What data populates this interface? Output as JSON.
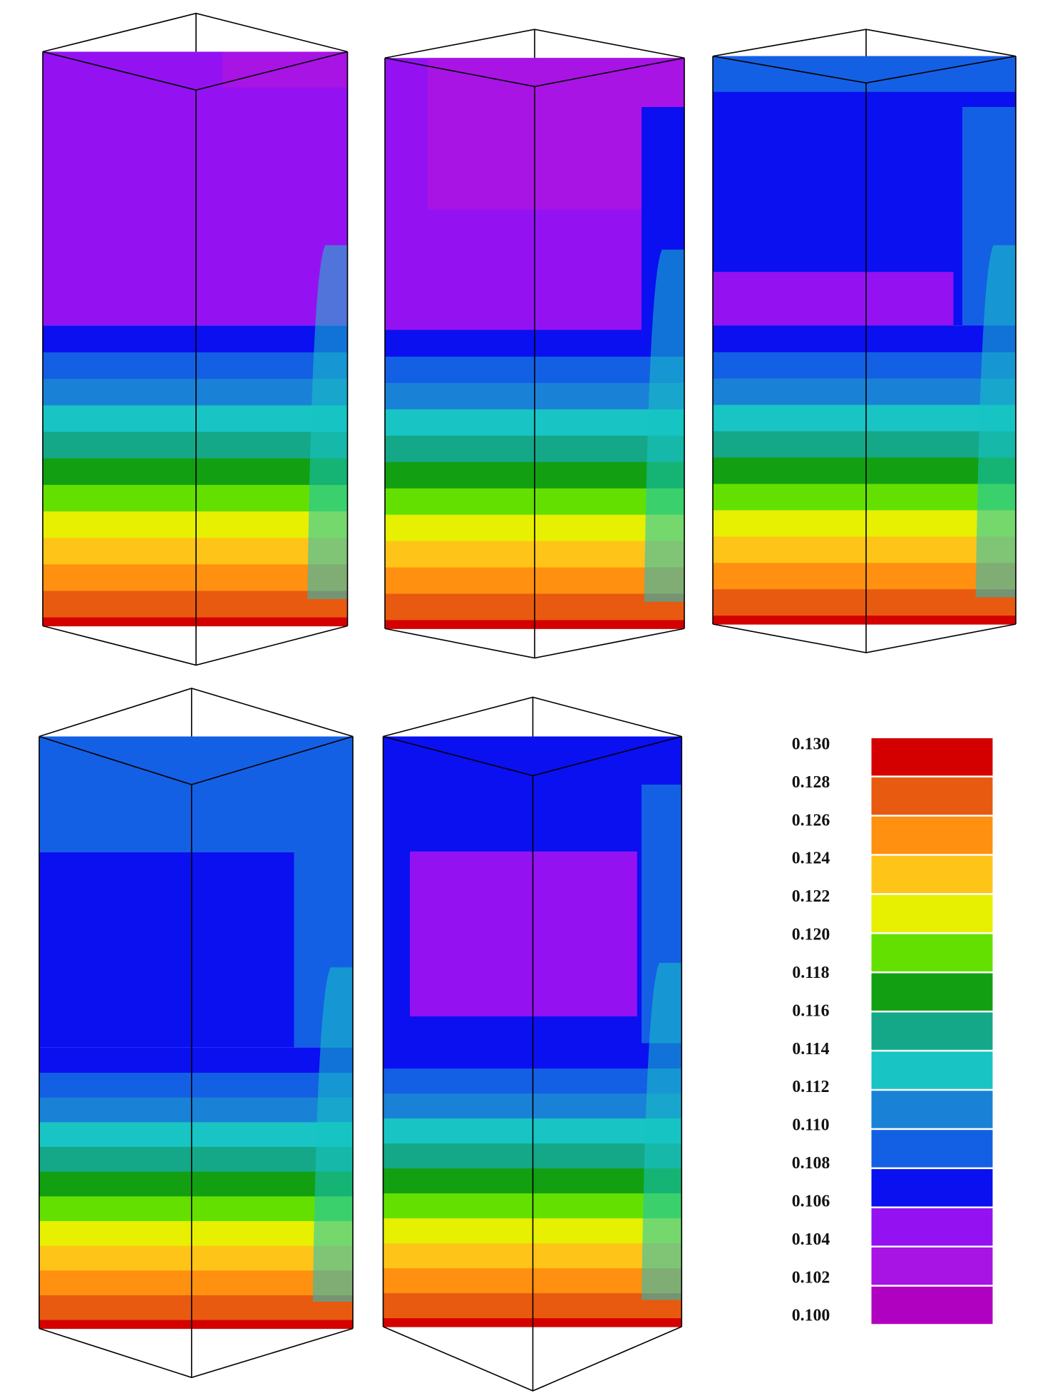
{
  "figure": {
    "legend": {
      "labels": [
        "0.130",
        "0.128",
        "0.126",
        "0.124",
        "0.122",
        "0.120",
        "0.118",
        "0.116",
        "0.114",
        "0.112",
        "0.110",
        "0.108",
        "0.106",
        "0.104",
        "0.102",
        "0.100"
      ],
      "colors": [
        "#d40000",
        "#e85a10",
        "#ff9010",
        "#ffc418",
        "#e6f000",
        "#64e000",
        "#12a012",
        "#14a888",
        "#18c4c4",
        "#1a82d6",
        "#1460e4",
        "#0a10f0",
        "#9412f2",
        "#a814e4",
        "#b000c0"
      ]
    }
  }
}
